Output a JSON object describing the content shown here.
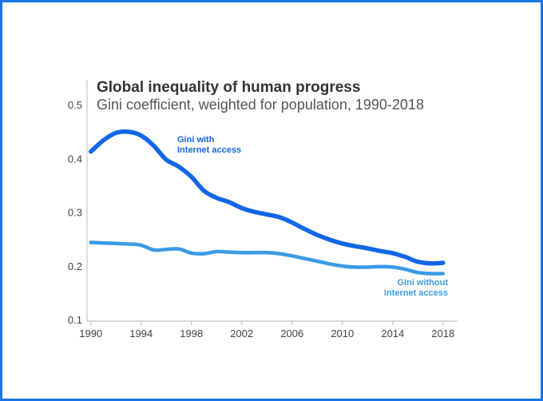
{
  "chart_data": {
    "type": "line",
    "title": "Global inequality of human progress",
    "subtitle": "Gini coefficient, weighted for population, 1990-2018",
    "xlabel": "",
    "ylabel": "",
    "xlim": [
      1989.7,
      2018.9
    ],
    "ylim": [
      0.1,
      0.5
    ],
    "x_ticks": [
      1990,
      1994,
      1998,
      2002,
      2006,
      2010,
      2014,
      2018
    ],
    "y_ticks": [
      "0.1",
      "0.2",
      "0.3",
      "0.4",
      "0.5"
    ],
    "series": [
      {
        "name": "Gini with Internet access",
        "label_lines": [
          "Gini with",
          "Internet access"
        ],
        "color": "#1366e6",
        "x": [
          1990,
          1991,
          1992,
          1993,
          1994,
          1995,
          1996,
          1997,
          1998,
          1999,
          2000,
          2001,
          2002,
          2003,
          2004,
          2005,
          2006,
          2007,
          2008,
          2009,
          2010,
          2011,
          2012,
          2013,
          2014,
          2015,
          2016,
          2017,
          2018
        ],
        "values": [
          0.414,
          0.435,
          0.449,
          0.451,
          0.444,
          0.425,
          0.399,
          0.386,
          0.367,
          0.341,
          0.328,
          0.32,
          0.309,
          0.302,
          0.297,
          0.292,
          0.282,
          0.27,
          0.259,
          0.25,
          0.243,
          0.238,
          0.234,
          0.229,
          0.225,
          0.218,
          0.209,
          0.206,
          0.207
        ]
      },
      {
        "name": "Gini without Internet access",
        "label_lines": [
          "Gini without",
          "Internet access"
        ],
        "color": "#3a9be6",
        "x": [
          1990,
          1991,
          1992,
          1993,
          1994,
          1995,
          1996,
          1997,
          1998,
          1999,
          2000,
          2001,
          2002,
          2003,
          2004,
          2005,
          2006,
          2007,
          2008,
          2009,
          2010,
          2011,
          2012,
          2013,
          2014,
          2015,
          2016,
          2017,
          2018
        ],
        "values": [
          0.245,
          0.244,
          0.243,
          0.242,
          0.24,
          0.231,
          0.232,
          0.233,
          0.225,
          0.224,
          0.228,
          0.227,
          0.226,
          0.226,
          0.226,
          0.224,
          0.22,
          0.215,
          0.21,
          0.205,
          0.201,
          0.199,
          0.199,
          0.2,
          0.199,
          0.195,
          0.189,
          0.187,
          0.187
        ]
      }
    ]
  }
}
